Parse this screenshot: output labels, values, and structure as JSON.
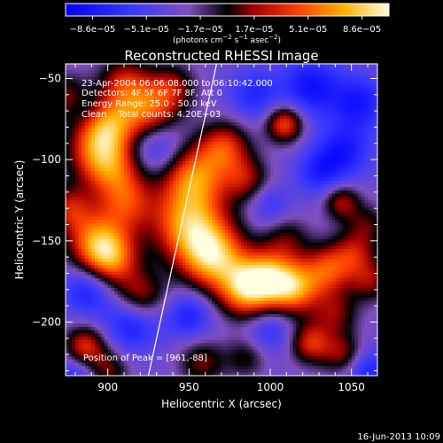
{
  "colorbar": {
    "ticks": [
      "−8.6e−05",
      "−5.1e−05",
      "−1.7e−05",
      "1.7e−05",
      "5.1e−05",
      "8.6e−05"
    ],
    "unit_prefix": "(photons cm",
    "unit_exp1": "−2",
    "unit_mid": " s",
    "unit_exp2": "−1",
    "unit_mid2": " asec",
    "unit_exp3": "−2",
    "unit_suffix": ")",
    "range": [
      -8.6e-05,
      8.6e-05
    ]
  },
  "annotations": {
    "line1": "23-Apr-2004 06:06:08.000 to 06:10:42.000",
    "line2": "Detectors: 4F 5F 6F 7F 8F, Att 0",
    "line3": "Energy Range: 25.0 - 50.0 keV",
    "line4": "Clean    Total counts: 4.20E+03",
    "peak": "Position of Peak = [961,-88]"
  },
  "footer": {
    "date": "16-Jun-2013 10:09"
  },
  "chart_data": {
    "type": "heatmap",
    "title": "Reconstructed RHESSI Image",
    "xlabel": "Heliocentric X (arcsec)",
    "ylabel": "Heliocentric Y (arcsec)",
    "xlim": [
      874,
      1066
    ],
    "ylim": [
      -233,
      -41
    ],
    "x_ticks": [
      900,
      950,
      1000,
      1050
    ],
    "x_tick_labels": [
      "900",
      "950",
      "1000",
      "1050"
    ],
    "y_ticks": [
      -50,
      -100,
      -150,
      -200
    ],
    "y_tick_labels": [
      "−50",
      "−100",
      "−150",
      "−200"
    ],
    "peak_position": [
      961,
      -88
    ],
    "limb_line": [
      [
        967,
        -41
      ],
      [
        925,
        -233
      ]
    ],
    "blobs": [
      {
        "x": 953,
        "y": -110,
        "v": 0.85,
        "r": 14
      },
      {
        "x": 950,
        "y": -140,
        "v": 0.95,
        "r": 16
      },
      {
        "x": 965,
        "y": -160,
        "v": 1.0,
        "r": 14
      },
      {
        "x": 985,
        "y": -180,
        "v": 0.95,
        "r": 12
      },
      {
        "x": 1000,
        "y": -172,
        "v": 0.85,
        "r": 12
      },
      {
        "x": 1015,
        "y": -180,
        "v": 0.8,
        "r": 11
      },
      {
        "x": 1035,
        "y": -168,
        "v": 0.7,
        "r": 11
      },
      {
        "x": 1052,
        "y": -158,
        "v": 0.5,
        "r": 10
      },
      {
        "x": 1040,
        "y": -195,
        "v": 0.45,
        "r": 10
      },
      {
        "x": 1025,
        "y": -213,
        "v": 0.65,
        "r": 9
      },
      {
        "x": 1045,
        "y": -220,
        "v": 0.5,
        "r": 9
      },
      {
        "x": 893,
        "y": -150,
        "v": 0.8,
        "r": 13
      },
      {
        "x": 902,
        "y": -162,
        "v": 0.75,
        "r": 12
      },
      {
        "x": 920,
        "y": -185,
        "v": 0.6,
        "r": 11
      },
      {
        "x": 905,
        "y": -108,
        "v": 0.6,
        "r": 13
      },
      {
        "x": 912,
        "y": -128,
        "v": 0.55,
        "r": 12
      },
      {
        "x": 893,
        "y": -95,
        "v": 0.7,
        "r": 13
      },
      {
        "x": 900,
        "y": -78,
        "v": 0.75,
        "r": 12
      },
      {
        "x": 925,
        "y": -70,
        "v": 0.8,
        "r": 13
      },
      {
        "x": 910,
        "y": -52,
        "v": 0.55,
        "r": 11
      },
      {
        "x": 940,
        "y": -55,
        "v": 0.45,
        "r": 10
      },
      {
        "x": 972,
        "y": -92,
        "v": 0.65,
        "r": 11
      },
      {
        "x": 985,
        "y": -112,
        "v": 0.5,
        "r": 10
      },
      {
        "x": 1009,
        "y": -78,
        "v": 0.8,
        "r": 8
      },
      {
        "x": 1044,
        "y": -126,
        "v": 0.55,
        "r": 8
      },
      {
        "x": 1010,
        "y": -148,
        "v": 0.35,
        "r": 10
      },
      {
        "x": 886,
        "y": -215,
        "v": 0.7,
        "r": 9
      },
      {
        "x": 900,
        "y": -230,
        "v": 0.45,
        "r": 9
      },
      {
        "x": 958,
        "y": -225,
        "v": 0.45,
        "r": 10
      },
      {
        "x": 985,
        "y": -222,
        "v": 0.35,
        "r": 9
      },
      {
        "x": 876,
        "y": -130,
        "v": 0.55,
        "r": 10
      },
      {
        "x": 875,
        "y": -62,
        "v": 0.5,
        "r": 10
      },
      {
        "x": 1060,
        "y": -140,
        "v": 0.35,
        "r": 9
      },
      {
        "x": 1062,
        "y": -175,
        "v": 0.45,
        "r": 9
      },
      {
        "x": 930,
        "y": -92,
        "v": -0.45,
        "r": 12
      },
      {
        "x": 915,
        "y": -200,
        "v": -0.55,
        "r": 12
      },
      {
        "x": 888,
        "y": -180,
        "v": -0.5,
        "r": 11
      },
      {
        "x": 950,
        "y": -196,
        "v": -0.45,
        "r": 10
      },
      {
        "x": 1025,
        "y": -55,
        "v": -0.55,
        "r": 13
      },
      {
        "x": 1055,
        "y": -65,
        "v": -0.5,
        "r": 12
      },
      {
        "x": 990,
        "y": -60,
        "v": -0.4,
        "r": 11
      },
      {
        "x": 1045,
        "y": -95,
        "v": -0.5,
        "r": 12
      },
      {
        "x": 1030,
        "y": -108,
        "v": -0.4,
        "r": 10
      },
      {
        "x": 1060,
        "y": -230,
        "v": -0.45,
        "r": 10
      },
      {
        "x": 1000,
        "y": -205,
        "v": -0.35,
        "r": 10
      },
      {
        "x": 880,
        "y": -235,
        "v": -0.4,
        "r": 10
      },
      {
        "x": 885,
        "y": -68,
        "v": -0.25,
        "r": 8
      },
      {
        "x": 1000,
        "y": -128,
        "v": -0.3,
        "r": 9
      }
    ]
  }
}
